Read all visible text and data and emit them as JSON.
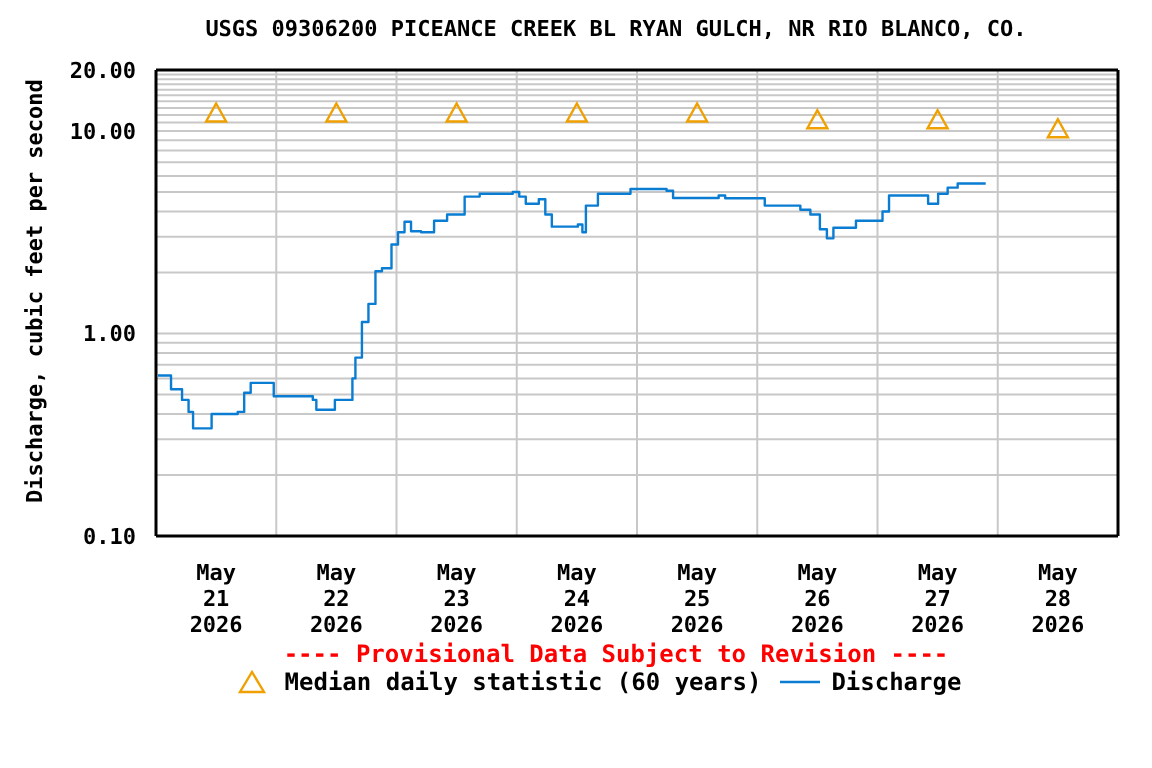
{
  "chart_data": {
    "type": "step",
    "title": "USGS 09306200 PICEANCE CREEK BL RYAN GULCH, NR RIO BLANCO, CO.",
    "ylabel": "Discharge, cubic feet per second",
    "annotations": [
      "---- Provisional Data Subject to Revision ----"
    ],
    "log": "y",
    "grid": true,
    "legend": "bottom",
    "xlim": [
      "2026-05-21T00:00",
      "2026-05-29T00:00"
    ],
    "xticks": [
      {
        "value": "2026-05-21T00:00",
        "label": null
      },
      {
        "value": "2026-05-21T12:00",
        "label": "May\n21\n2026"
      },
      {
        "value": "2026-05-22T00:00",
        "label": null
      },
      {
        "value": "2026-05-22T12:00",
        "label": "May\n22\n2026"
      },
      {
        "value": "2026-05-23T00:00",
        "label": null
      },
      {
        "value": "2026-05-23T12:00",
        "label": "May\n23\n2026"
      },
      {
        "value": "2026-05-24T00:00",
        "label": null
      },
      {
        "value": "2026-05-24T12:00",
        "label": "May\n24\n2026"
      },
      {
        "value": "2026-05-25T00:00",
        "label": null
      },
      {
        "value": "2026-05-25T12:00",
        "label": "May\n25\n2026"
      },
      {
        "value": "2026-05-26T00:00",
        "label": null
      },
      {
        "value": "2026-05-26T12:00",
        "label": "May\n26\n2026"
      },
      {
        "value": "2026-05-27T00:00",
        "label": null
      },
      {
        "value": "2026-05-27T12:00",
        "label": "May\n27\n2026"
      },
      {
        "value": "2026-05-28T00:00",
        "label": null
      },
      {
        "value": "2026-05-28T12:00",
        "label": "May\n28\n2026"
      },
      {
        "value": "2026-05-29T00:00",
        "label": null
      }
    ],
    "ylim": [
      0.1,
      20
    ],
    "yticks": [
      {
        "value": 0.1,
        "label": "0.10"
      },
      {
        "value": 0.2,
        "label": null
      },
      {
        "value": 0.3,
        "label": null
      },
      {
        "value": 0.4,
        "label": null
      },
      {
        "value": 0.5,
        "label": null
      },
      {
        "value": 0.6,
        "label": null
      },
      {
        "value": 0.7,
        "label": null
      },
      {
        "value": 0.8,
        "label": null
      },
      {
        "value": 0.9,
        "label": null
      },
      {
        "value": 1,
        "label": "1.00"
      },
      {
        "value": 2,
        "label": null
      },
      {
        "value": 3,
        "label": null
      },
      {
        "value": 4,
        "label": null
      },
      {
        "value": 5,
        "label": null
      },
      {
        "value": 6,
        "label": null
      },
      {
        "value": 7,
        "label": null
      },
      {
        "value": 8,
        "label": null
      },
      {
        "value": 9,
        "label": null
      },
      {
        "value": 10,
        "label": "10.00"
      },
      {
        "value": 11,
        "label": null
      },
      {
        "value": 12,
        "label": null
      },
      {
        "value": 13,
        "label": null
      },
      {
        "value": 14,
        "label": null
      },
      {
        "value": 15,
        "label": null
      },
      {
        "value": 16,
        "label": null
      },
      {
        "value": 17,
        "label": null
      },
      {
        "value": 18,
        "label": null
      },
      {
        "value": 19,
        "label": null
      },
      {
        "value": 20,
        "label": "20.00"
      }
    ],
    "series": [
      {
        "name": "Median daily statistic (60 years)",
        "type": "scatter",
        "marker": "triangle",
        "color": "#f0a000",
        "x": [
          "2026-05-21T12:00",
          "2026-05-22T12:00",
          "2026-05-23T12:00",
          "2026-05-24T12:00",
          "2026-05-25T12:00",
          "2026-05-26T12:00",
          "2026-05-27T12:00",
          "2026-05-28T12:00"
        ],
        "values": [
          12.2,
          12.2,
          12.2,
          12.2,
          12.2,
          11.3,
          11.3,
          10.2
        ]
      },
      {
        "name": "Discharge",
        "type": "step",
        "color": "#0a7dd2",
        "x": [
          "2026-05-21T00:24",
          "2026-05-21T02:36",
          "2026-05-21T03:00",
          "2026-05-21T05:12",
          "2026-05-21T06:30",
          "2026-05-21T07:24",
          "2026-05-21T09:48",
          "2026-05-21T11:06",
          "2026-05-21T16:18",
          "2026-05-21T17:36",
          "2026-05-21T18:54",
          "2026-05-21T22:12",
          "2026-05-21T23:30",
          "2026-05-22T07:18",
          "2026-05-22T08:00",
          "2026-05-22T11:18",
          "2026-05-22T11:42",
          "2026-05-22T13:54",
          "2026-05-22T15:12",
          "2026-05-22T15:48",
          "2026-05-22T17:06",
          "2026-05-22T18:24",
          "2026-05-22T19:48",
          "2026-05-22T21:06",
          "2026-05-22T23:00",
          "2026-05-23T00:18",
          "2026-05-23T01:36",
          "2026-05-23T02:54",
          "2026-05-23T04:54",
          "2026-05-23T07:30",
          "2026-05-23T10:06",
          "2026-05-23T12:42",
          "2026-05-23T13:36",
          "2026-05-23T16:36",
          "2026-05-23T23:12",
          "2026-05-24T00:30",
          "2026-05-24T01:48",
          "2026-05-24T04:24",
          "2026-05-24T05:42",
          "2026-05-24T07:00",
          "2026-05-24T12:12",
          "2026-05-24T13:06",
          "2026-05-24T13:48",
          "2026-05-24T16:12",
          "2026-05-24T20:06",
          "2026-05-24T22:42",
          "2026-05-25T05:54",
          "2026-05-25T07:12",
          "2026-05-25T16:18",
          "2026-05-25T17:36",
          "2026-05-26T00:48",
          "2026-05-26T01:30",
          "2026-05-26T08:36",
          "2026-05-26T10:36",
          "2026-05-26T12:30",
          "2026-05-26T13:54",
          "2026-05-26T15:12",
          "2026-05-26T19:06",
          "2026-05-26T19:42",
          "2026-05-27T01:00",
          "2026-05-27T02:18",
          "2026-05-27T08:48",
          "2026-05-27T10:06",
          "2026-05-27T12:06",
          "2026-05-27T14:00",
          "2026-05-27T16:00",
          "2026-05-27T21:36"
        ],
        "values": [
          0.62,
          0.62,
          0.53,
          0.47,
          0.41,
          0.34,
          0.34,
          0.4,
          0.41,
          0.51,
          0.57,
          0.57,
          0.49,
          0.47,
          0.42,
          0.42,
          0.47,
          0.47,
          0.6,
          0.76,
          1.14,
          1.4,
          2.03,
          2.1,
          2.75,
          3.16,
          3.56,
          3.2,
          3.16,
          3.6,
          3.87,
          3.87,
          4.74,
          4.9,
          5.0,
          4.74,
          4.37,
          4.6,
          3.87,
          3.37,
          3.45,
          3.16,
          4.28,
          4.9,
          4.9,
          5.17,
          5.07,
          4.67,
          4.8,
          4.65,
          4.65,
          4.28,
          4.08,
          3.87,
          3.27,
          2.95,
          3.33,
          3.33,
          3.6,
          4.0,
          4.8,
          4.8,
          4.37,
          4.9,
          5.25,
          5.5,
          5.5
        ]
      }
    ]
  }
}
